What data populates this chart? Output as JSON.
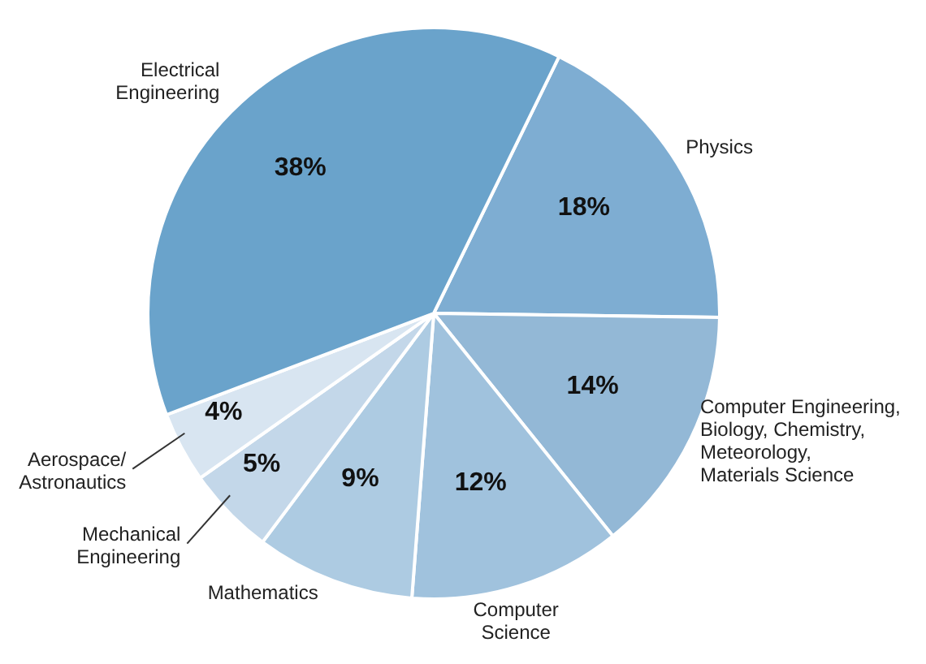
{
  "chart_data": {
    "type": "pie",
    "categories": [
      "Physics",
      "Computer Engineering, Biology, Chemistry, Meteorology, Materials Science",
      "Computer Science",
      "Mathematics",
      "Mechanical Engineering",
      "Aerospace/ Astronautics",
      "Electrical Engineering"
    ],
    "values": [
      18,
      14,
      12,
      9,
      5,
      4,
      38
    ],
    "colors": [
      "#7eadd2",
      "#93b8d6",
      "#a0c2dd",
      "#adcbe2",
      "#c3d7e9",
      "#d8e5f1",
      "#6aa3cb"
    ],
    "value_labels": [
      "18%",
      "14%",
      "12%",
      "9%",
      "5%",
      "4%",
      "38%"
    ]
  }
}
